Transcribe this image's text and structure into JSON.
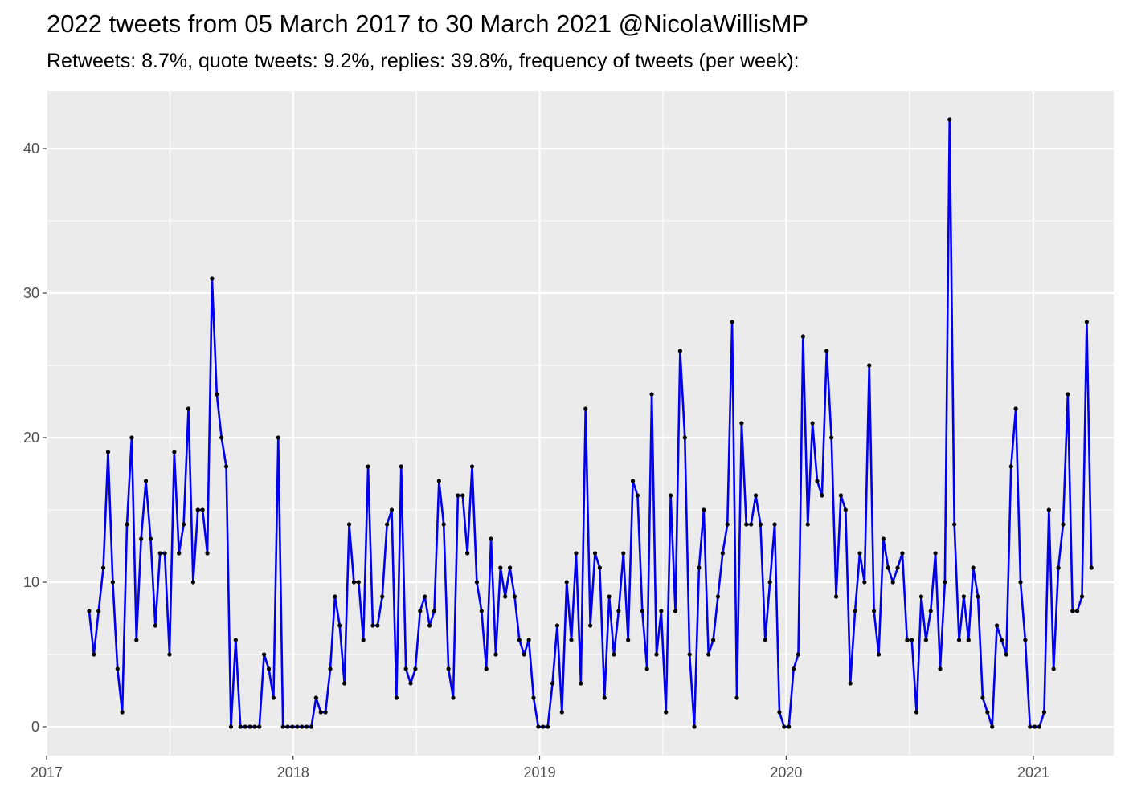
{
  "chart_data": {
    "type": "line",
    "title": "2022 tweets from 05 March 2017 to 30 March 2021 @NicolaWillisMP",
    "subtitle": "Retweets: 8.7%, quote tweets: 9.2%, replies: 39.8%, frequency of tweets (per week):",
    "xlabel": "",
    "ylabel": "",
    "x_range": [
      "2017-01-01",
      "2021-04-30"
    ],
    "y_range": [
      -2,
      44
    ],
    "x_ticks": [
      {
        "date": "2017-01-01",
        "label": "2017"
      },
      {
        "date": "2018-01-01",
        "label": "2018"
      },
      {
        "date": "2019-01-01",
        "label": "2019"
      },
      {
        "date": "2020-01-01",
        "label": "2020"
      },
      {
        "date": "2021-01-01",
        "label": "2021"
      }
    ],
    "y_ticks": [
      0,
      10,
      20,
      30,
      40
    ],
    "grid": true,
    "colors": {
      "line": "#0000ee",
      "point": "#000000",
      "panel": "#ebebeb",
      "grid": "#ffffff"
    },
    "series": [
      {
        "x": [
          "2017-03-05",
          "2017-03-12",
          "2017-03-19",
          "2017-03-26",
          "2017-04-02",
          "2017-04-09",
          "2017-04-16",
          "2017-04-23",
          "2017-04-30",
          "2017-05-07",
          "2017-05-14",
          "2017-05-21",
          "2017-05-28",
          "2017-06-04",
          "2017-06-11",
          "2017-06-18",
          "2017-06-25",
          "2017-07-02",
          "2017-07-09",
          "2017-07-16",
          "2017-07-23",
          "2017-07-30",
          "2017-08-06",
          "2017-08-13",
          "2017-08-20",
          "2017-08-27",
          "2017-09-03",
          "2017-09-10",
          "2017-09-17",
          "2017-09-24",
          "2017-10-01",
          "2017-10-08",
          "2017-10-15",
          "2017-10-22",
          "2017-10-29",
          "2017-11-05",
          "2017-11-12",
          "2017-11-19",
          "2017-11-26",
          "2017-12-03",
          "2017-12-10",
          "2017-12-17",
          "2017-12-24",
          "2017-12-31",
          "2018-01-07",
          "2018-01-14",
          "2018-01-21",
          "2018-01-28",
          "2018-02-04",
          "2018-02-11",
          "2018-02-18",
          "2018-02-25",
          "2018-03-04",
          "2018-03-11",
          "2018-03-18",
          "2018-03-25",
          "2018-04-01",
          "2018-04-08",
          "2018-04-15",
          "2018-04-22",
          "2018-04-29",
          "2018-05-06",
          "2018-05-13",
          "2018-05-20",
          "2018-05-27",
          "2018-06-03",
          "2018-06-10",
          "2018-06-17",
          "2018-06-24",
          "2018-07-01",
          "2018-07-08",
          "2018-07-15",
          "2018-07-22",
          "2018-07-29",
          "2018-08-05",
          "2018-08-12",
          "2018-08-19",
          "2018-08-26",
          "2018-09-02",
          "2018-09-09",
          "2018-09-16",
          "2018-09-23",
          "2018-09-30",
          "2018-10-07",
          "2018-10-14",
          "2018-10-21",
          "2018-10-28",
          "2018-11-04",
          "2018-11-11",
          "2018-11-18",
          "2018-11-25",
          "2018-12-02",
          "2018-12-09",
          "2018-12-16",
          "2018-12-23",
          "2018-12-30",
          "2019-01-06",
          "2019-01-13",
          "2019-01-20",
          "2019-01-27",
          "2019-02-03",
          "2019-02-10",
          "2019-02-17",
          "2019-02-24",
          "2019-03-03",
          "2019-03-10",
          "2019-03-17",
          "2019-03-24",
          "2019-03-31",
          "2019-04-07",
          "2019-04-14",
          "2019-04-21",
          "2019-04-28",
          "2019-05-05",
          "2019-05-12",
          "2019-05-19",
          "2019-05-26",
          "2019-06-02",
          "2019-06-09",
          "2019-06-16",
          "2019-06-23",
          "2019-06-30",
          "2019-07-07",
          "2019-07-14",
          "2019-07-21",
          "2019-07-28",
          "2019-08-04",
          "2019-08-11",
          "2019-08-18",
          "2019-08-25",
          "2019-09-01",
          "2019-09-08",
          "2019-09-15",
          "2019-09-22",
          "2019-09-29",
          "2019-10-06",
          "2019-10-13",
          "2019-10-20",
          "2019-10-27",
          "2019-11-03",
          "2019-11-10",
          "2019-11-17",
          "2019-11-24",
          "2019-12-01",
          "2019-12-08",
          "2019-12-15",
          "2019-12-22",
          "2019-12-29",
          "2020-01-05",
          "2020-01-12",
          "2020-01-19",
          "2020-01-26",
          "2020-02-02",
          "2020-02-09",
          "2020-02-16",
          "2020-02-23",
          "2020-03-01",
          "2020-03-08",
          "2020-03-15",
          "2020-03-22",
          "2020-03-29",
          "2020-04-05",
          "2020-04-12",
          "2020-04-19",
          "2020-04-26",
          "2020-05-03",
          "2020-05-10",
          "2020-05-17",
          "2020-05-24",
          "2020-05-31",
          "2020-06-07",
          "2020-06-14",
          "2020-06-21",
          "2020-06-28",
          "2020-07-05",
          "2020-07-12",
          "2020-07-19",
          "2020-07-26",
          "2020-08-02",
          "2020-08-09",
          "2020-08-16",
          "2020-08-23",
          "2020-08-30",
          "2020-09-06",
          "2020-09-13",
          "2020-09-20",
          "2020-09-27",
          "2020-10-04",
          "2020-10-11",
          "2020-10-18",
          "2020-10-25",
          "2020-11-01",
          "2020-11-08",
          "2020-11-15",
          "2020-11-22",
          "2020-11-29",
          "2020-12-06",
          "2020-12-13",
          "2020-12-20",
          "2020-12-27",
          "2021-01-03",
          "2021-01-10",
          "2021-01-17",
          "2021-01-24",
          "2021-01-31",
          "2021-02-07",
          "2021-02-14",
          "2021-02-21",
          "2021-02-28",
          "2021-03-07",
          "2021-03-14",
          "2021-03-21",
          "2021-03-28"
        ],
        "y": [
          8,
          5,
          8,
          11,
          19,
          10,
          4,
          1,
          14,
          20,
          6,
          13,
          17,
          13,
          7,
          12,
          12,
          5,
          19,
          12,
          14,
          22,
          10,
          15,
          15,
          12,
          31,
          23,
          20,
          18,
          0,
          6,
          0,
          0,
          0,
          0,
          0,
          5,
          4,
          2,
          20,
          0,
          0,
          0,
          0,
          0,
          0,
          0,
          2,
          1,
          1,
          4,
          9,
          7,
          3,
          14,
          10,
          10,
          6,
          18,
          7,
          7,
          9,
          14,
          15,
          2,
          18,
          4,
          3,
          4,
          8,
          9,
          7,
          8,
          17,
          14,
          4,
          2,
          16,
          16,
          12,
          18,
          10,
          8,
          4,
          13,
          5,
          11,
          9,
          11,
          9,
          6,
          5,
          6,
          2,
          0,
          0,
          0,
          3,
          7,
          1,
          10,
          6,
          12,
          3,
          22,
          7,
          12,
          11,
          2,
          9,
          5,
          8,
          12,
          6,
          17,
          16,
          8,
          4,
          23,
          5,
          8,
          1,
          16,
          8,
          26,
          20,
          5,
          0,
          11,
          15,
          5,
          6,
          9,
          12,
          14,
          28,
          2,
          21,
          14,
          14,
          16,
          14,
          6,
          10,
          14,
          1,
          0,
          0,
          4,
          5,
          27,
          14,
          21,
          17,
          16,
          26,
          20,
          9,
          16,
          15,
          3,
          8,
          12,
          10,
          25,
          8,
          5,
          13,
          11,
          10,
          11,
          12,
          6,
          6,
          1,
          9,
          6,
          8,
          12,
          4,
          10,
          42,
          14,
          6,
          9,
          6,
          11,
          9,
          2,
          1,
          0,
          7,
          6,
          5,
          18,
          22,
          10,
          6,
          0,
          0,
          0,
          1,
          15,
          4,
          11,
          14,
          23,
          8,
          8,
          9,
          28,
          11
        ]
      }
    ]
  }
}
